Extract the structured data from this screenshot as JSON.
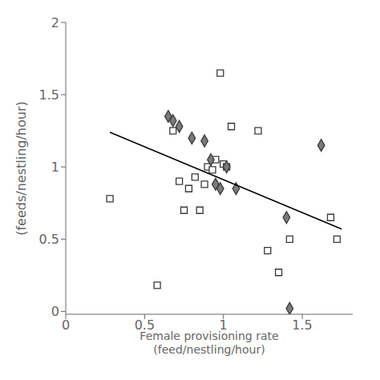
{
  "chart_data": {
    "type": "scatter",
    "xlabel": "Female provisioning rate\n(feed/nestling/hour)",
    "ylabel": "(feeds/nestling/hour)",
    "xlim": [
      0,
      1.82
    ],
    "ylim": [
      -0.02,
      2.0
    ],
    "xticks": [
      0,
      0.5,
      1.0,
      1.5
    ],
    "yticks": [
      0,
      0.5,
      1.0,
      1.5,
      2.0
    ],
    "grid": false,
    "series": [
      {
        "type": "scatter",
        "marker": "square",
        "color": "white",
        "x": [
          0.28,
          0.58,
          0.68,
          0.72,
          0.75,
          0.78,
          0.82,
          0.85,
          0.88,
          0.9,
          0.93,
          0.95,
          0.98,
          1.0,
          1.02,
          1.05,
          1.22,
          1.28,
          1.35,
          1.42,
          1.68,
          1.72
        ],
        "values": [
          0.78,
          0.18,
          1.25,
          0.9,
          0.7,
          0.85,
          0.93,
          0.7,
          0.88,
          1.0,
          0.98,
          1.05,
          1.65,
          1.02,
          1.0,
          1.28,
          1.25,
          0.42,
          0.27,
          0.5,
          0.65,
          0.5
        ]
      },
      {
        "type": "scatter",
        "marker": "diamond",
        "color": "#7a7a7a",
        "x": [
          0.65,
          0.68,
          0.72,
          0.8,
          0.88,
          0.92,
          0.95,
          0.98,
          1.02,
          1.08,
          1.4,
          1.62,
          1.42
        ],
        "values": [
          1.35,
          1.32,
          1.28,
          1.2,
          1.18,
          1.05,
          0.88,
          0.85,
          1.0,
          0.85,
          0.65,
          1.15,
          0.02
        ]
      },
      {
        "type": "line",
        "color": "black",
        "x": [
          0.28,
          1.75
        ],
        "values": [
          1.24,
          0.57
        ]
      }
    ]
  }
}
